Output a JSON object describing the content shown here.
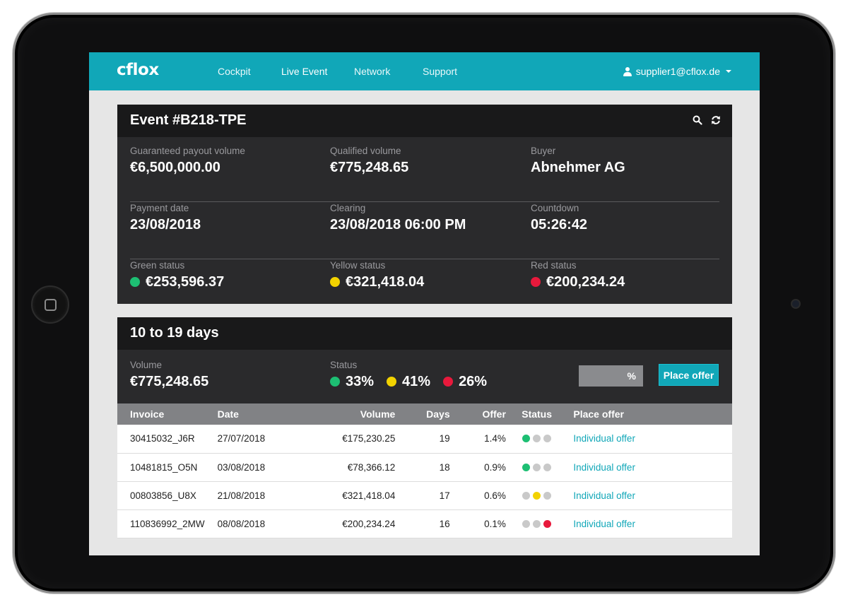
{
  "colors": {
    "accent": "#11a7b8",
    "green": "#1dbf73",
    "yellow": "#f2d200",
    "red": "#e8193c",
    "grey": "#c9c9c9"
  },
  "nav": {
    "logo": "cflox",
    "items": [
      {
        "label": "Cockpit"
      },
      {
        "label": "Live Event"
      },
      {
        "label": "Network"
      },
      {
        "label": "Support"
      }
    ],
    "user": "supplier1@cflox.de"
  },
  "event": {
    "title": "Event #B218-TPE",
    "guaranteed_label": "Guaranteed payout volume",
    "guaranteed_value": "€6,500,000.00",
    "qualified_label": "Qualified volume",
    "qualified_value": "€775,248.65",
    "buyer_label": "Buyer",
    "buyer_value": "Abnehmer AG",
    "payment_label": "Payment date",
    "payment_value": "23/08/2018",
    "clearing_label": "Clearing",
    "clearing_value": "23/08/2018 06:00 PM",
    "countdown_label": "Countdown",
    "countdown_value": "05:26:42",
    "green_label": "Green status",
    "green_value": "€253,596.37",
    "yellow_label": "Yellow status",
    "yellow_value": "€321,418.04",
    "red_label": "Red status",
    "red_value": "€200,234.24"
  },
  "group": {
    "title": "10 to 19 days",
    "volume_label": "Volume",
    "volume_value": "€775,248.65",
    "status_label": "Status",
    "status_green": "33%",
    "status_yellow": "41%",
    "status_red": "26%",
    "percent_placeholder": "%",
    "place_offer_label": "Place offer",
    "columns": [
      "Invoice",
      "Date",
      "Volume",
      "Days",
      "Offer",
      "Status",
      "Place offer"
    ],
    "rows": [
      {
        "invoice": "30415032_J6R",
        "date": "27/07/2018",
        "volume": "€175,230.25",
        "days": "19",
        "offer": "1.4%",
        "status": "green",
        "action": "Individual offer"
      },
      {
        "invoice": "10481815_O5N",
        "date": "03/08/2018",
        "volume": "€78,366.12",
        "days": "18",
        "offer": "0.9%",
        "status": "green",
        "action": "Individual offer"
      },
      {
        "invoice": "00803856_U8X",
        "date": "21/08/2018",
        "volume": "€321,418.04",
        "days": "17",
        "offer": "0.6%",
        "status": "yellow",
        "action": "Individual offer"
      },
      {
        "invoice": "110836992_2MW",
        "date": "08/08/2018",
        "volume": "€200,234.24",
        "days": "16",
        "offer": "0.1%",
        "status": "red",
        "action": "Individual offer"
      }
    ]
  }
}
